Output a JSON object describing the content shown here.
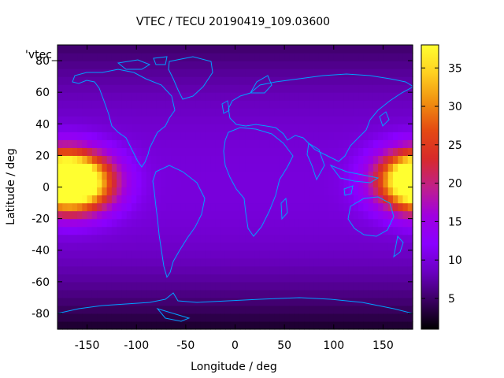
{
  "chart_data": {
    "type": "heatmap",
    "title": "VTEC / TECU 20190419_109.03600",
    "xlabel": "Longitude / deg",
    "ylabel": "Latitude / deg",
    "series_key": "'vtec_",
    "xlim": [
      -180,
      180
    ],
    "ylim": [
      -90,
      90
    ],
    "x_ticks": [
      -150,
      -100,
      -50,
      0,
      50,
      100,
      150
    ],
    "y_ticks": [
      -80,
      -60,
      -40,
      -20,
      0,
      20,
      40,
      60,
      80
    ],
    "colorbar": {
      "range": [
        1,
        38
      ],
      "ticks": [
        5,
        10,
        15,
        20,
        25,
        30,
        35
      ],
      "colors": [
        "#000000",
        "#3a0060",
        "#6a00c0",
        "#8a00ff",
        "#a000e0",
        "#c0208a",
        "#d82a2a",
        "#e44a12",
        "#f09010",
        "#ffd020",
        "#ffff30"
      ]
    },
    "vtec_model": {
      "background": 10,
      "polar_south": 2.5,
      "polar_north": 5,
      "peaks": [
        {
          "lon": -160,
          "lat": 3,
          "amplitude": 27
        },
        {
          "lon": 180,
          "lat": 5,
          "amplitude": 25
        }
      ]
    },
    "coastline_color": "#00a0ff"
  }
}
